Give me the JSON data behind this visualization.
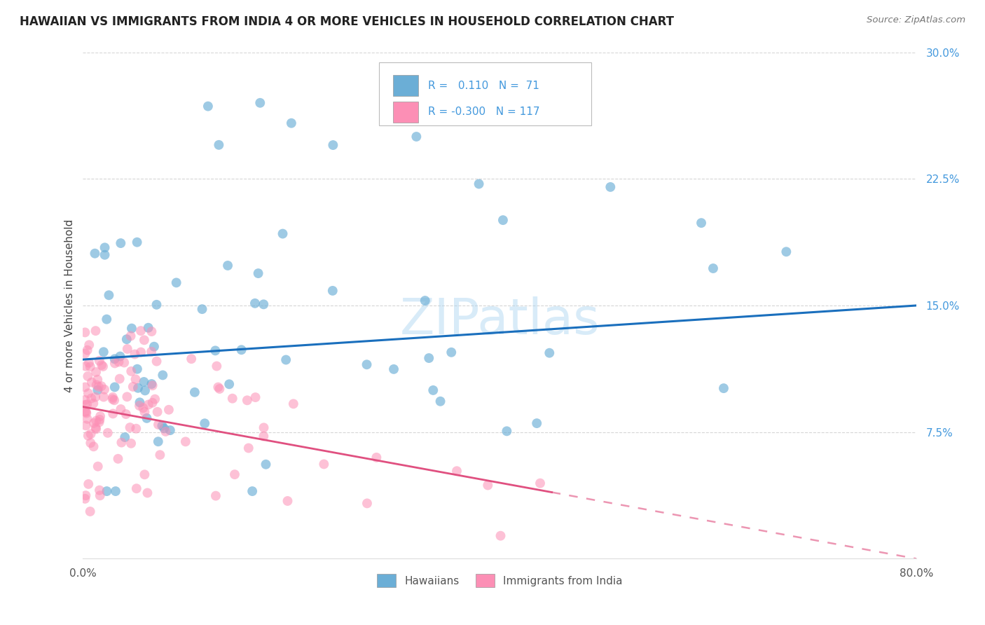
{
  "title": "HAWAIIAN VS IMMIGRANTS FROM INDIA 4 OR MORE VEHICLES IN HOUSEHOLD CORRELATION CHART",
  "source": "Source: ZipAtlas.com",
  "ylabel": "4 or more Vehicles in Household",
  "xlim": [
    0,
    0.8
  ],
  "ylim": [
    0,
    0.3
  ],
  "ytick_positions": [
    0.075,
    0.15,
    0.225,
    0.3
  ],
  "ytick_labels": [
    "7.5%",
    "15.0%",
    "22.5%",
    "30.0%"
  ],
  "hawaiian_color": "#6baed6",
  "indian_color": "#fc8fb5",
  "hawaiian_R": 0.11,
  "hawaiian_N": 71,
  "indian_R": -0.3,
  "indian_N": 117,
  "watermark_text": "ZIPatlas",
  "background_color": "#ffffff",
  "grid_color": "#cccccc",
  "blue_line_color": "#1a6fbd",
  "pink_line_color": "#e05080",
  "legend_label_color": "#4499dd"
}
